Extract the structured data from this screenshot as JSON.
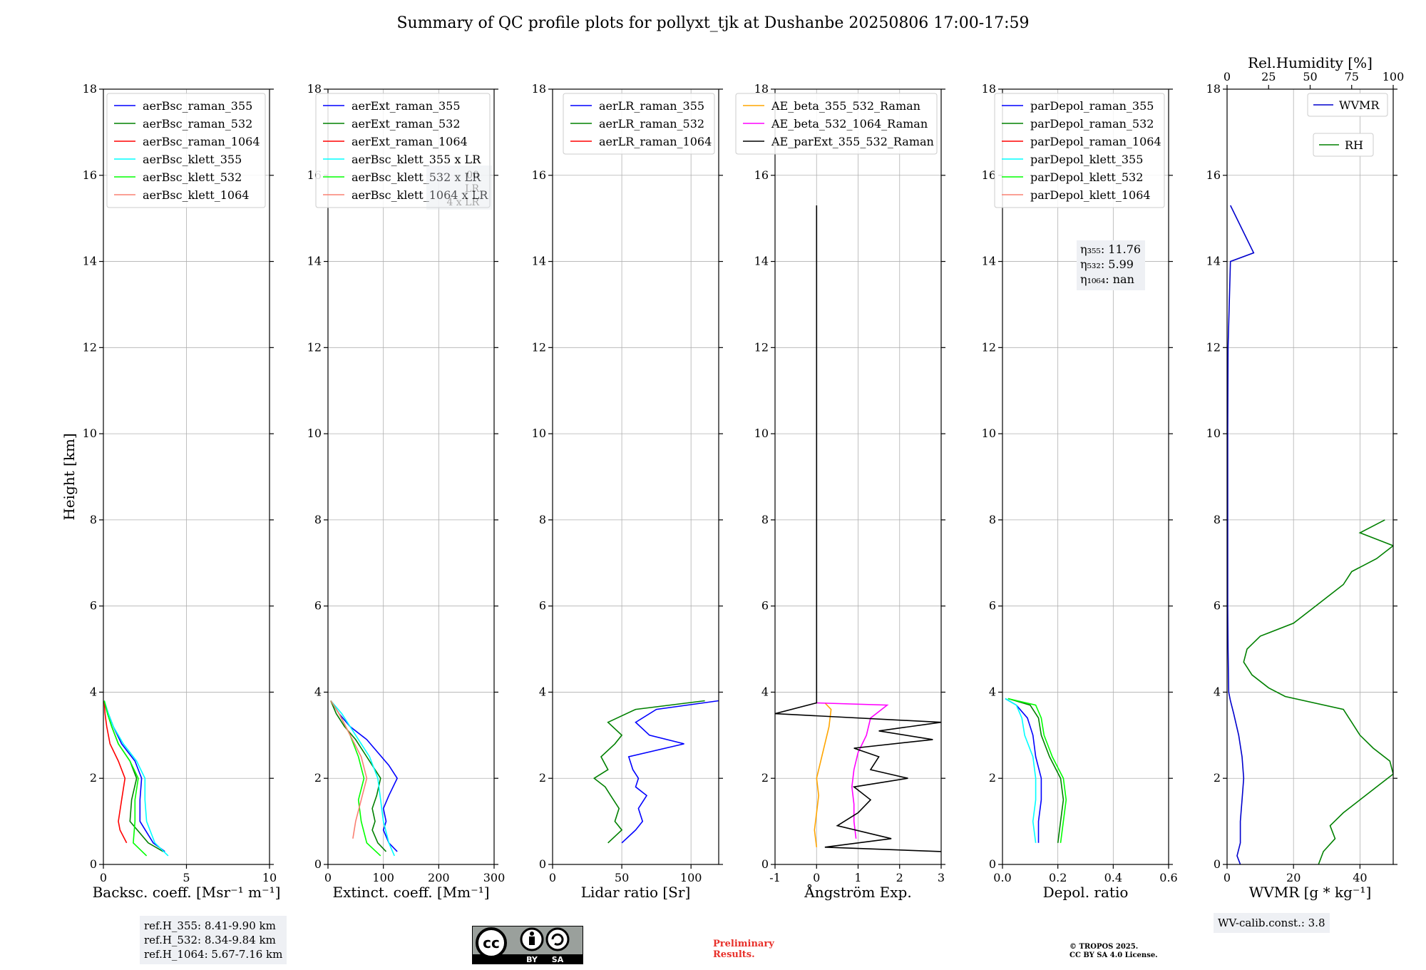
{
  "title": "Summary of QC profile plots for pollyxt_tjk at Dushanbe 20250806 17:00-17:59",
  "colors": {
    "blue": "#0000ff",
    "green": "#008000",
    "red": "#ff0000",
    "cyan": "#00ffff",
    "lime": "#00ff00",
    "salmon": "#fa8072",
    "orange": "#ffa500",
    "magenta": "#ff00ff",
    "black": "#000000",
    "darkblue": "#0000cd"
  },
  "chart_data": [
    {
      "type": "line",
      "xlabel": "Backsc. coeff. [Msr⁻¹ m⁻¹]",
      "ylabel": "Height [km]",
      "xlim": [
        0,
        10
      ],
      "ylim": [
        0,
        18
      ],
      "xticks": [
        0,
        5,
        10
      ],
      "yticks": [
        0,
        2,
        4,
        6,
        8,
        10,
        12,
        14,
        16,
        18
      ],
      "legend": "top-right",
      "series": [
        {
          "name": "aerBsc_raman_355",
          "color": "#0000ff",
          "h": [
            0.3,
            0.5,
            1.0,
            1.5,
            2.0,
            2.4,
            2.8,
            3.2,
            3.5,
            3.8
          ],
          "x": [
            3.7,
            3.0,
            2.2,
            2.2,
            2.3,
            1.9,
            1.1,
            0.6,
            0.3,
            0.05
          ]
        },
        {
          "name": "aerBsc_raman_532",
          "color": "#008000",
          "h": [
            0.3,
            0.5,
            1.0,
            1.5,
            2.0,
            2.4,
            2.8,
            3.2,
            3.5,
            3.8
          ],
          "x": [
            3.6,
            2.7,
            1.6,
            1.7,
            2.0,
            1.6,
            0.9,
            0.5,
            0.25,
            0.05
          ]
        },
        {
          "name": "aerBsc_raman_1064",
          "color": "#ff0000",
          "h": [
            0.5,
            0.8,
            1.0,
            1.5,
            2.0,
            2.4,
            2.8,
            3.2,
            3.5,
            3.8
          ],
          "x": [
            1.4,
            1.0,
            0.9,
            1.1,
            1.3,
            0.9,
            0.4,
            0.2,
            0.1,
            0.05
          ]
        },
        {
          "name": "aerBsc_klett_355",
          "color": "#00ffff",
          "h": [
            0.2,
            0.5,
            1.0,
            1.5,
            2.0,
            2.4,
            2.8,
            3.2,
            3.5,
            3.8
          ],
          "x": [
            3.9,
            3.1,
            2.6,
            2.5,
            2.5,
            2.0,
            1.2,
            0.6,
            0.3,
            0.05
          ]
        },
        {
          "name": "aerBsc_klett_532",
          "color": "#00ff00",
          "h": [
            0.2,
            0.5,
            1.0,
            1.5,
            2.0,
            2.4,
            2.8,
            3.2,
            3.5,
            3.8
          ],
          "x": [
            2.6,
            1.8,
            1.9,
            1.9,
            2.1,
            1.6,
            0.9,
            0.5,
            0.25,
            0.05
          ]
        },
        {
          "name": "aerBsc_klett_1064",
          "color": "#fa8072",
          "h": [],
          "x": []
        }
      ]
    },
    {
      "type": "line",
      "xlabel": "Extinct. coeff. [Mm⁻¹]",
      "xlim": [
        0,
        300
      ],
      "ylim": [
        0,
        18
      ],
      "xticks": [
        0,
        100,
        200,
        300
      ],
      "yticks": [
        0,
        2,
        4,
        6,
        8,
        10,
        12,
        14,
        16,
        18
      ],
      "legend": "top-right",
      "series": [
        {
          "name": "aerExt_raman_355",
          "color": "#0000ff",
          "h": [
            0.3,
            0.5,
            0.8,
            1.0,
            1.3,
            1.6,
            2.0,
            2.3,
            2.6,
            2.9,
            3.2,
            3.5,
            3.8
          ],
          "x": [
            125,
            110,
            100,
            105,
            100,
            110,
            125,
            110,
            90,
            70,
            40,
            20,
            5
          ]
        },
        {
          "name": "aerExt_raman_532",
          "color": "#008000",
          "h": [
            0.3,
            0.5,
            0.8,
            1.0,
            1.3,
            1.6,
            2.0,
            2.3,
            2.6,
            2.9,
            3.2,
            3.5,
            3.8
          ],
          "x": [
            105,
            90,
            80,
            85,
            80,
            88,
            95,
            80,
            65,
            50,
            30,
            15,
            5
          ]
        },
        {
          "name": "aerExt_raman_1064",
          "color": "#ff0000",
          "h": [],
          "x": []
        },
        {
          "name": "aerBsc_klett_355 x LR",
          "color": "#00ffff",
          "h": [
            0.2,
            0.5,
            1.0,
            1.5,
            2.0,
            2.5,
            3.0,
            3.5,
            3.8
          ],
          "x": [
            120,
            110,
            100,
            95,
            90,
            75,
            50,
            25,
            5
          ]
        },
        {
          "name": "aerBsc_klett_532 x LR",
          "color": "#00ff00",
          "h": [
            0.2,
            0.5,
            1.0,
            1.5,
            2.0,
            2.5,
            3.0,
            3.5,
            3.8
          ],
          "x": [
            95,
            70,
            60,
            55,
            65,
            55,
            40,
            20,
            5
          ]
        },
        {
          "name": "aerBsc_klett_1064 x LR",
          "color": "#fa8072",
          "h": [
            0.6,
            1.0,
            1.5,
            2.0,
            2.5,
            3.0,
            3.5,
            3.8
          ],
          "x": [
            45,
            50,
            60,
            70,
            60,
            40,
            20,
            5
          ]
        }
      ]
    },
    {
      "type": "line",
      "xlabel": "Lidar ratio [Sr]",
      "xlim": [
        0,
        120
      ],
      "ylim": [
        0,
        18
      ],
      "xticks": [
        0,
        50,
        100
      ],
      "yticks": [
        0,
        2,
        4,
        6,
        8,
        10,
        12,
        14,
        16,
        18
      ],
      "legend": "top-right",
      "series": [
        {
          "name": "aerLR_raman_355",
          "color": "#0000ff",
          "h": [
            0.5,
            0.8,
            1.0,
            1.3,
            1.6,
            1.8,
            2.0,
            2.2,
            2.5,
            2.8,
            3.0,
            3.3,
            3.6,
            3.8
          ],
          "x": [
            50,
            60,
            65,
            62,
            68,
            60,
            62,
            58,
            55,
            95,
            70,
            60,
            75,
            120
          ]
        },
        {
          "name": "aerLR_raman_532",
          "color": "#008000",
          "h": [
            0.5,
            0.8,
            1.0,
            1.3,
            1.6,
            1.8,
            2.0,
            2.2,
            2.5,
            2.8,
            3.0,
            3.3,
            3.6,
            3.8
          ],
          "x": [
            40,
            50,
            45,
            48,
            42,
            38,
            30,
            40,
            35,
            45,
            50,
            40,
            60,
            110
          ]
        },
        {
          "name": "aerLR_raman_1064",
          "color": "#ff0000",
          "h": [],
          "x": []
        }
      ]
    },
    {
      "type": "line",
      "xlabel": "Ångström Exp.",
      "xlim": [
        -1,
        3
      ],
      "ylim": [
        0,
        18
      ],
      "xticks": [
        -1,
        0,
        1,
        2,
        3
      ],
      "yticks": [
        0,
        2,
        4,
        6,
        8,
        10,
        12,
        14,
        16,
        18
      ],
      "legend": "top-right",
      "series": [
        {
          "name": "AE_beta_355_532_Raman",
          "color": "#ffa500",
          "h": [
            0.4,
            0.8,
            1.2,
            1.6,
            2.0,
            2.4,
            2.8,
            3.2,
            3.6,
            3.75
          ],
          "x": [
            0,
            -0.05,
            0.0,
            0.05,
            0.0,
            0.1,
            0.2,
            0.3,
            0.35,
            0.2
          ]
        },
        {
          "name": "AE_beta_532_1064_Raman",
          "color": "#ff00ff",
          "h": [
            0.6,
            1.0,
            1.4,
            1.8,
            2.2,
            2.6,
            3.0,
            3.4,
            3.7,
            3.75
          ],
          "x": [
            0.95,
            0.9,
            0.9,
            0.85,
            0.9,
            1.0,
            1.2,
            1.3,
            1.7,
            0.0
          ]
        },
        {
          "name": "AE_parExt_355_532_Raman",
          "color": "#000000",
          "h": [
            0.3,
            0.4,
            0.6,
            0.9,
            1.2,
            1.5,
            1.8,
            2.0,
            2.2,
            2.5,
            2.7,
            2.9,
            3.1,
            3.3,
            3.5,
            3.75,
            15.3
          ],
          "x": [
            3.0,
            0.2,
            1.8,
            0.5,
            1.0,
            1.3,
            0.9,
            2.2,
            1.3,
            1.5,
            0.9,
            2.8,
            1.5,
            3.0,
            -1.0,
            0,
            0
          ]
        }
      ]
    },
    {
      "type": "line",
      "xlabel": "Depol. ratio",
      "xlim": [
        0,
        0.6
      ],
      "ylim": [
        0,
        18
      ],
      "xticks": [
        0.0,
        0.2,
        0.4,
        0.6
      ],
      "yticks": [
        0,
        2,
        4,
        6,
        8,
        10,
        12,
        14,
        16,
        18
      ],
      "legend": "top-right",
      "annotation": [
        "η₃₅₅: 11.76",
        "η₅₃₂: 5.99",
        "η₁₀₆₄: nan"
      ],
      "series": [
        {
          "name": "parDepol_raman_355",
          "color": "#0000ff",
          "h": [
            0.5,
            1.0,
            1.5,
            2.0,
            2.5,
            3.0,
            3.4,
            3.7,
            3.85
          ],
          "x": [
            0.13,
            0.13,
            0.14,
            0.14,
            0.12,
            0.11,
            0.09,
            0.05,
            0.01
          ]
        },
        {
          "name": "parDepol_raman_532",
          "color": "#008000",
          "h": [
            0.5,
            1.0,
            1.5,
            2.0,
            2.5,
            3.0,
            3.4,
            3.7,
            3.85
          ],
          "x": [
            0.2,
            0.21,
            0.22,
            0.21,
            0.17,
            0.14,
            0.13,
            0.1,
            0.02
          ]
        },
        {
          "name": "parDepol_raman_1064",
          "color": "#ff0000",
          "h": [],
          "x": []
        },
        {
          "name": "parDepol_klett_355",
          "color": "#00ffff",
          "h": [
            0.5,
            1.0,
            1.5,
            2.0,
            2.5,
            3.0,
            3.4,
            3.7,
            3.85
          ],
          "x": [
            0.12,
            0.11,
            0.12,
            0.12,
            0.11,
            0.08,
            0.07,
            0.05,
            0.01
          ]
        },
        {
          "name": "parDepol_klett_532",
          "color": "#00ff00",
          "h": [
            0.5,
            1.0,
            1.5,
            2.0,
            2.5,
            3.0,
            3.4,
            3.7,
            3.85
          ],
          "x": [
            0.21,
            0.22,
            0.23,
            0.22,
            0.18,
            0.15,
            0.14,
            0.12,
            0.02
          ]
        },
        {
          "name": "parDepol_klett_1064",
          "color": "#fa8072",
          "h": [],
          "x": []
        }
      ]
    },
    {
      "type": "line",
      "xlabel": "WVMR [g * kg⁻¹]",
      "x2label": "Rel.Humidity [%]",
      "xlim": [
        0,
        50
      ],
      "x2lim": [
        0,
        100
      ],
      "ylim": [
        0,
        18
      ],
      "xticks": [
        0,
        20,
        40
      ],
      "x2ticks": [
        0,
        25,
        50,
        75,
        100
      ],
      "yticks": [
        0,
        2,
        4,
        6,
        8,
        10,
        12,
        14,
        16,
        18
      ],
      "legend": "top-right",
      "series": [
        {
          "name": "WVMR",
          "color": "#0000cd",
          "h": [
            0.0,
            0.2,
            0.5,
            1.0,
            1.5,
            2.0,
            2.5,
            3.0,
            3.5,
            3.8,
            4.0,
            5.0,
            6.0,
            8.0,
            10.0,
            12.0,
            14.0,
            14.2,
            15.3
          ],
          "x": [
            4,
            3,
            4,
            4,
            4.5,
            5,
            4.5,
            3.5,
            2,
            1,
            0.5,
            0.3,
            0.2,
            0.2,
            0.2,
            0.3,
            1,
            8,
            1
          ]
        },
        {
          "name": "RH",
          "color": "#008000",
          "h": [
            0.0,
            0.3,
            0.6,
            0.9,
            1.2,
            1.5,
            1.8,
            2.1,
            2.4,
            2.7,
            3.0,
            3.3,
            3.6,
            3.9,
            4.1,
            4.4,
            4.7,
            5.0,
            5.3,
            5.6,
            5.9,
            6.2,
            6.5,
            6.8,
            7.1,
            7.4,
            7.7,
            8.0
          ],
          "x2": [
            55,
            58,
            65,
            62,
            70,
            80,
            90,
            100,
            98,
            88,
            80,
            75,
            70,
            35,
            25,
            15,
            10,
            12,
            20,
            40,
            50,
            60,
            70,
            75,
            90,
            100,
            80,
            95
          ]
        }
      ]
    }
  ],
  "info_left": [
    "ref.H_355: 8.41-9.90 km",
    "ref.H_532: 8.34-9.84 km",
    "ref.H_1064: 5.67-7.16 km"
  ],
  "info_right": "WV-calib.const.: 3.8",
  "preliminary": [
    "Preliminary",
    "Results."
  ],
  "copyright": [
    "© TROPOS 2025.",
    "CC BY SA 4.0 License."
  ],
  "license_badge": {
    "by": "BY",
    "sa": "SA",
    "cc": "cc"
  },
  "ghost_text": [
    "00",
    "LR",
    "4 x LR"
  ]
}
